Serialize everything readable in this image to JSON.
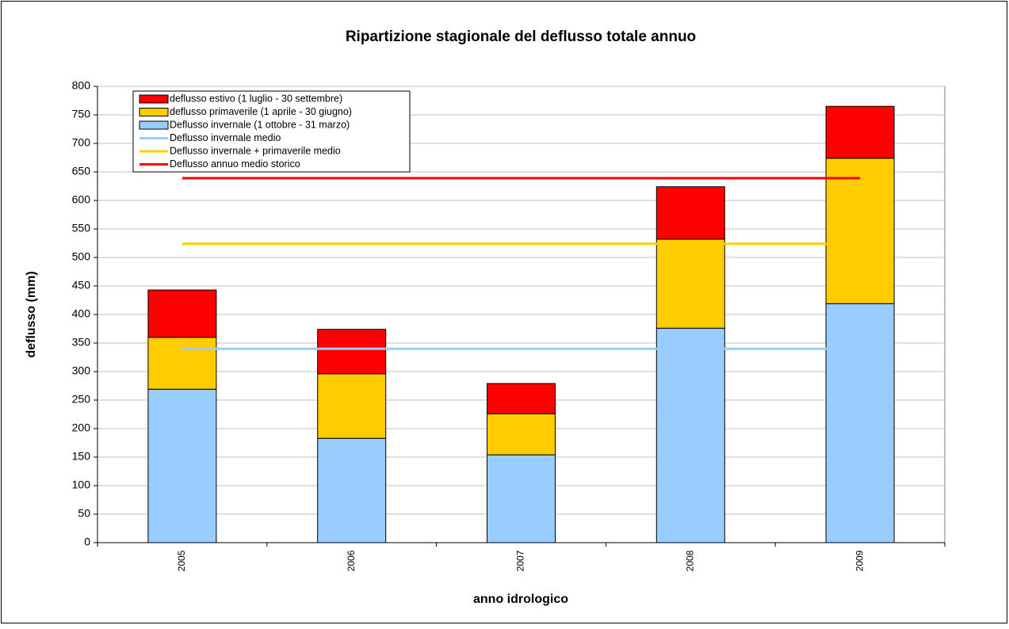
{
  "chart_data": {
    "type": "bar",
    "stacked": true,
    "title": "Ripartizione stagionale del deflusso totale annuo",
    "x_label": "anno idrologico",
    "y_label": "deflusso  (mm)",
    "categories": [
      "2005",
      "2006",
      "2007",
      "2008",
      "2009"
    ],
    "series": [
      {
        "name": "Deflusso invernale (1 ottobre - 31 marzo)",
        "type": "bar",
        "color": "#99ccff",
        "values": [
          269,
          183,
          154,
          376,
          419
        ]
      },
      {
        "name": "deflusso primaverile (1 aprile - 30 giugno)",
        "type": "bar",
        "color": "#ffcc00",
        "values": [
          91,
          113,
          72,
          156,
          255
        ]
      },
      {
        "name": "deflusso estivo (1 luglio - 30 settembre)",
        "type": "bar",
        "color": "#ff0000",
        "values": [
          83,
          78,
          53,
          92,
          91
        ]
      },
      {
        "name": "Deflusso invernale medio",
        "type": "line",
        "color": "#99ccff",
        "values": [
          340,
          340,
          340,
          340,
          340
        ]
      },
      {
        "name": "Deflusso invernale + primaverile medio",
        "type": "line",
        "color": "#ffcc00",
        "values": [
          524,
          524,
          524,
          524,
          524
        ]
      },
      {
        "name": "Deflusso annuo medio storico",
        "type": "line",
        "color": "#ff0000",
        "values": [
          639,
          639,
          639,
          639,
          639
        ]
      }
    ],
    "ylim": [
      0,
      800
    ],
    "yticks": [
      0,
      50,
      100,
      150,
      200,
      250,
      300,
      350,
      400,
      450,
      500,
      550,
      600,
      650,
      700,
      750,
      800
    ],
    "grid": true,
    "legend": "top-left"
  }
}
